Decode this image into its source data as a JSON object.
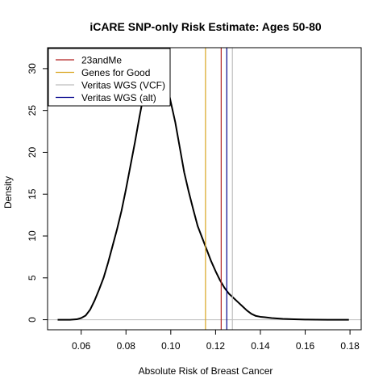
{
  "chart_data": {
    "type": "line",
    "title": "iCARE SNP-only Risk Estimate: Ages 50-80",
    "xlabel": "Absolute Risk of Breast Cancer",
    "ylabel": "Density",
    "xlim": [
      0.045,
      0.185
    ],
    "ylim": [
      -1.2,
      32.5
    ],
    "xticks": [
      0.06,
      0.08,
      0.1,
      0.12,
      0.14,
      0.16,
      0.18
    ],
    "xtick_labels": [
      "0.06",
      "0.08",
      "0.10",
      "0.12",
      "0.14",
      "0.16",
      "0.18"
    ],
    "yticks": [
      0,
      5,
      10,
      15,
      20,
      25,
      30
    ],
    "ytick_labels": [
      "0",
      "5",
      "10",
      "15",
      "20",
      "25",
      "30"
    ],
    "grid": false,
    "zero_line": {
      "y": 0,
      "color": "#bebebe"
    },
    "density_curve": {
      "color": "#000000",
      "x": [
        0.0495,
        0.055,
        0.058,
        0.06,
        0.062,
        0.064,
        0.066,
        0.068,
        0.07,
        0.072,
        0.074,
        0.076,
        0.078,
        0.08,
        0.082,
        0.084,
        0.086,
        0.088,
        0.09,
        0.092,
        0.094,
        0.096,
        0.098,
        0.1,
        0.102,
        0.104,
        0.106,
        0.108,
        0.11,
        0.112,
        0.114,
        0.116,
        0.118,
        0.12,
        0.122,
        0.124,
        0.126,
        0.128,
        0.13,
        0.132,
        0.134,
        0.136,
        0.138,
        0.14,
        0.142,
        0.145,
        0.15,
        0.155,
        0.16,
        0.165,
        0.17,
        0.175,
        0.1795
      ],
      "y": [
        0.0,
        0.0,
        0.05,
        0.2,
        0.5,
        1.2,
        2.3,
        3.6,
        5.0,
        6.8,
        8.8,
        10.8,
        13.0,
        15.6,
        18.4,
        21.2,
        24.2,
        27.0,
        29.4,
        31.0,
        31.5,
        30.5,
        28.6,
        26.0,
        23.6,
        20.6,
        17.6,
        15.3,
        13.2,
        11.2,
        9.8,
        8.4,
        7.0,
        5.8,
        4.7,
        3.8,
        3.1,
        2.6,
        2.1,
        1.6,
        1.1,
        0.7,
        0.45,
        0.35,
        0.3,
        0.2,
        0.1,
        0.05,
        0.02,
        0.01,
        0.0,
        0.0,
        0.0
      ]
    },
    "vlines": [
      {
        "name": "23andMe",
        "x": 0.1225,
        "color": "#b22222"
      },
      {
        "name": "Genes for Good",
        "x": 0.1155,
        "color": "#daa520"
      },
      {
        "name": "Veritas WGS (VCF)",
        "x": 0.1275,
        "color": "#bebebe"
      },
      {
        "name": "Veritas WGS (alt)",
        "x": 0.125,
        "color": "#00008b"
      }
    ],
    "legend": {
      "position": "top-left",
      "entries": [
        {
          "label": "23andMe",
          "color": "#b22222"
        },
        {
          "label": "Genes for Good",
          "color": "#daa520"
        },
        {
          "label": "Veritas WGS (VCF)",
          "color": "#bebebe"
        },
        {
          "label": "Veritas WGS (alt)",
          "color": "#00008b"
        }
      ]
    }
  }
}
